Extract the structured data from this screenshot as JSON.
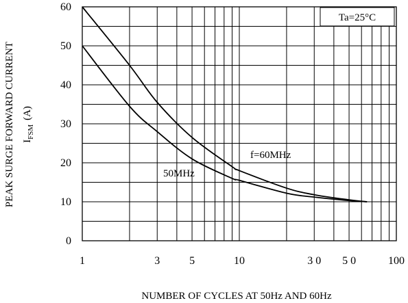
{
  "chart_data": {
    "type": "line",
    "xscale": "log",
    "xlim": [
      1,
      100
    ],
    "ylim": [
      0,
      60
    ],
    "grid": true,
    "xticks": [
      {
        "value": 1,
        "label": "1"
      },
      {
        "value": 3,
        "label": "3"
      },
      {
        "value": 5,
        "label": "5"
      },
      {
        "value": 10,
        "label": "10"
      },
      {
        "value": 30,
        "label": "3 0"
      },
      {
        "value": 50,
        "label": "5 0"
      },
      {
        "value": 100,
        "label": "100"
      }
    ],
    "yticks": [
      0,
      10,
      20,
      30,
      40,
      50,
      60
    ],
    "xlabel": "NUMBER OF CYCLES AT 50Hz AND 60Hz",
    "ylabel_line1": "PEAK SURGE FORWARD CURRENT",
    "ylabel_line2_main": "I",
    "ylabel_line2_sub": "FSM",
    "ylabel_line2_unit": "(A)",
    "annotation": "Ta=25°C",
    "series": [
      {
        "name": "f=60MHz",
        "x": [
          1,
          2,
          3,
          5,
          9,
          10,
          20,
          30,
          50,
          65
        ],
        "y": [
          60,
          45,
          35.5,
          26.5,
          19,
          18,
          13.5,
          11.8,
          10.5,
          10
        ]
      },
      {
        "name": "50MHz",
        "x": [
          1,
          2,
          3,
          5,
          9,
          10,
          20,
          30,
          50,
          65
        ],
        "y": [
          50,
          34.5,
          28,
          21,
          16,
          15.5,
          12.2,
          11.2,
          10.3,
          10
        ]
      }
    ]
  }
}
